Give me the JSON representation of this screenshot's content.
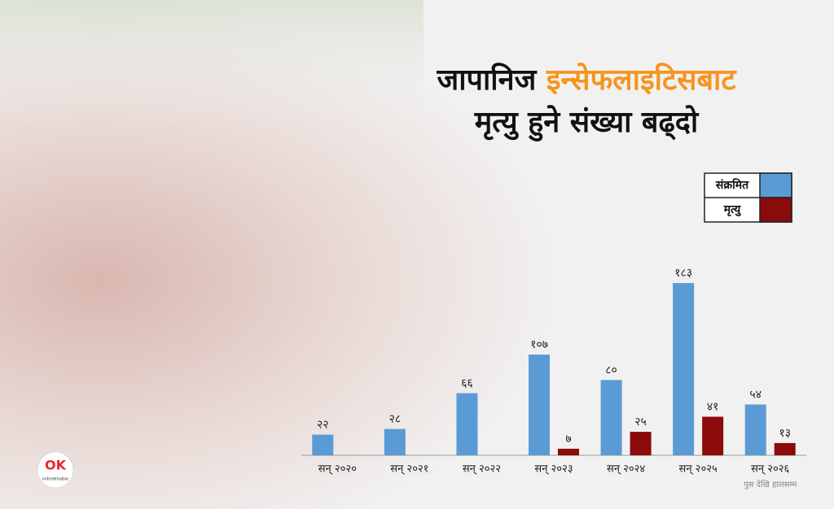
{
  "chart_data": {
    "type": "bar",
    "title": [
      "जापानिज",
      "इन्सेफलाइटिसबाट",
      "मृत्यु हुने संख्या बढ्दो"
    ],
    "title_colors": [
      "#111111",
      "#f7941d",
      "#111111"
    ],
    "categories": [
      "सन् २०२०",
      "सन् २०२१",
      "सन् २०२२",
      "सन् २०२३",
      "सन् २०२४",
      "सन् २०२५",
      "सन् २०२६"
    ],
    "series": [
      {
        "name": "संक्रमित",
        "color": "#5b9bd5",
        "values": [
          22,
          28,
          66,
          107,
          80,
          183,
          54
        ],
        "value_labels": [
          "२२",
          "२८",
          "६६",
          "१०७",
          "८०",
          "१८३",
          "५४"
        ]
      },
      {
        "name": "मृत्यु",
        "color": "#8b0a0a",
        "values": [
          null,
          null,
          null,
          7,
          25,
          41,
          13
        ],
        "value_labels": [
          null,
          null,
          null,
          "७",
          "२५",
          "४१",
          "१३"
        ]
      }
    ],
    "ylim": [
      0,
      190
    ],
    "note": "पुस देखि हालसम्म",
    "legend": "top-right"
  },
  "logo": {
    "mark": "OK",
    "text": "onlinekhabar"
  }
}
